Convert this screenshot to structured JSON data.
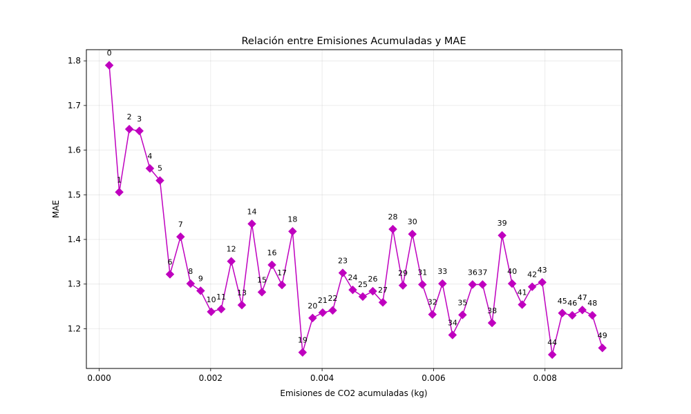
{
  "chart_data": {
    "type": "line",
    "title": "Relación entre Emisiones Acumuladas y MAE",
    "xlabel": "Emisiones de CO2 acumuladas (kg)",
    "ylabel": "MAE",
    "xlim": [
      -0.00023,
      0.00938
    ],
    "ylim": [
      1.111,
      1.825
    ],
    "xticks": [
      0.0,
      0.002,
      0.004,
      0.006,
      0.008
    ],
    "xtick_labels": [
      "0.000",
      "0.002",
      "0.004",
      "0.006",
      "0.008"
    ],
    "yticks": [
      1.2,
      1.3,
      1.4,
      1.5,
      1.6,
      1.7,
      1.8
    ],
    "ytick_labels": [
      "1.2",
      "1.3",
      "1.4",
      "1.5",
      "1.6",
      "1.7",
      "1.8"
    ],
    "grid": true,
    "color": "#bf00bf",
    "marker": "diamond",
    "series": [
      {
        "x": [
          0.00018,
          0.00036,
          0.00054,
          0.00072,
          0.00091,
          0.00109,
          0.00127,
          0.00146,
          0.00164,
          0.00182,
          0.00201,
          0.00219,
          0.00237,
          0.00256,
          0.00274,
          0.00292,
          0.0031,
          0.00328,
          0.00347,
          0.00365,
          0.00383,
          0.00401,
          0.00419,
          0.00437,
          0.00455,
          0.00473,
          0.00491,
          0.00509,
          0.00527,
          0.00545,
          0.00562,
          0.0058,
          0.00598,
          0.00616,
          0.00634,
          0.00652,
          0.0067,
          0.00688,
          0.00705,
          0.00723,
          0.00741,
          0.00759,
          0.00777,
          0.00795,
          0.00813,
          0.00831,
          0.00849,
          0.00867,
          0.00885,
          0.00903
        ],
        "y": [
          1.79,
          1.506,
          1.647,
          1.643,
          1.559,
          1.532,
          1.322,
          1.406,
          1.301,
          1.285,
          1.238,
          1.244,
          1.351,
          1.253,
          1.435,
          1.282,
          1.343,
          1.298,
          1.418,
          1.147,
          1.224,
          1.236,
          1.241,
          1.325,
          1.287,
          1.272,
          1.284,
          1.259,
          1.423,
          1.297,
          1.412,
          1.299,
          1.232,
          1.301,
          1.186,
          1.231,
          1.299,
          1.299,
          1.213,
          1.409,
          1.301,
          1.254,
          1.294,
          1.304,
          1.142,
          1.235,
          1.23,
          1.242,
          1.23,
          1.157
        ],
        "labels": [
          "0",
          "1",
          "2",
          "3",
          "4",
          "5",
          "6",
          "7",
          "8",
          "9",
          "10",
          "11",
          "12",
          "13",
          "14",
          "15",
          "16",
          "17",
          "18",
          "19",
          "20",
          "21",
          "22",
          "23",
          "24",
          "25",
          "26",
          "27",
          "28",
          "29",
          "30",
          "31",
          "32",
          "33",
          "34",
          "35",
          "36",
          "37",
          "38",
          "39",
          "40",
          "41",
          "42",
          "43",
          "44",
          "45",
          "46",
          "47",
          "48",
          "49"
        ]
      }
    ]
  }
}
